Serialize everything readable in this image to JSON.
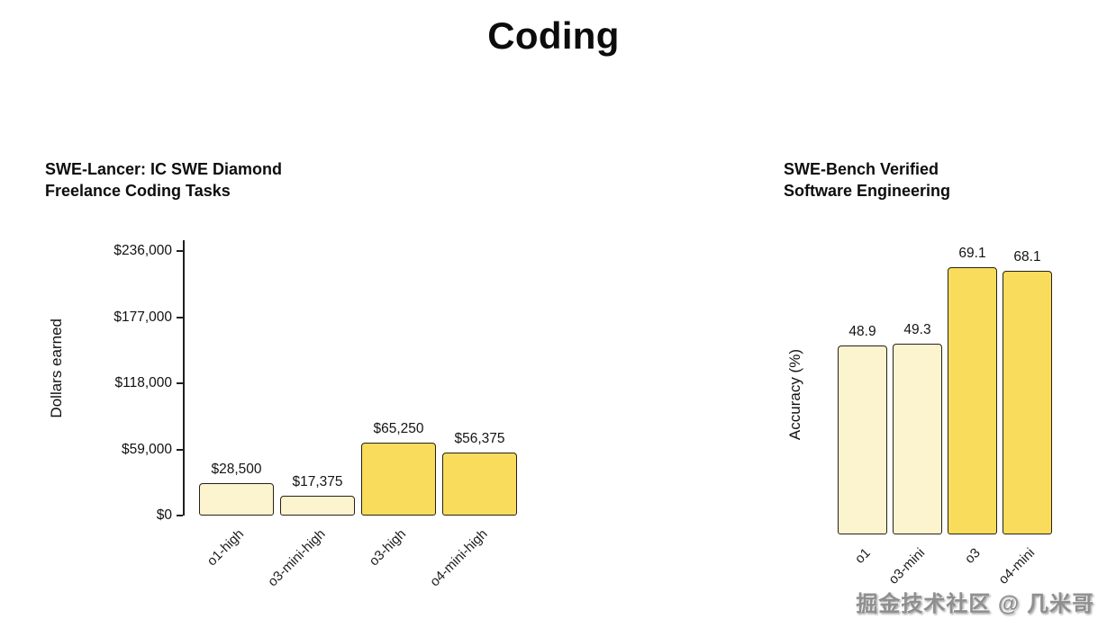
{
  "title": "Coding",
  "watermark": "掘金技术社区 @ 几米哥",
  "colors": {
    "bar_light": "#FCF3CF",
    "bar_dark": "#F9DC5C",
    "bar_border": "#262115",
    "axis": "#1f1f1f"
  },
  "chart_data": [
    {
      "type": "bar",
      "title": "SWE-Lancer: IC SWE Diamond\nFreelance Coding Tasks",
      "xlabel": "",
      "ylabel": "Dollars earned",
      "categories": [
        "o1-high",
        "o3-mini-high",
        "o3-high",
        "o4-mini-high"
      ],
      "values": [
        28500,
        17375,
        65250,
        56375
      ],
      "value_labels": [
        "$28,500",
        "$17,375",
        "$65,250",
        "$56,375"
      ],
      "bar_styles": [
        "light",
        "light",
        "dark",
        "dark"
      ],
      "yticks": [
        0,
        59000,
        118000,
        177000,
        236000
      ],
      "ytick_labels": [
        "$0",
        "$59,000",
        "$118,000",
        "$177,000",
        "$236,000"
      ],
      "ylim": [
        0,
        236000
      ],
      "grid": false,
      "legend": "none"
    },
    {
      "type": "bar",
      "title": "SWE-Bench Verified\nSoftware Engineering",
      "xlabel": "",
      "ylabel": "Accuracy (%)",
      "categories": [
        "o1",
        "o3-mini",
        "o3",
        "o4-mini"
      ],
      "values": [
        48.9,
        49.3,
        69.1,
        68.1
      ],
      "value_labels": [
        "48.9",
        "49.3",
        "69.1",
        "68.1"
      ],
      "bar_styles": [
        "light",
        "light",
        "dark",
        "dark"
      ],
      "yticks": [],
      "ytick_labels": [],
      "ylim": [
        0,
        71
      ],
      "grid": false,
      "legend": "none"
    }
  ]
}
